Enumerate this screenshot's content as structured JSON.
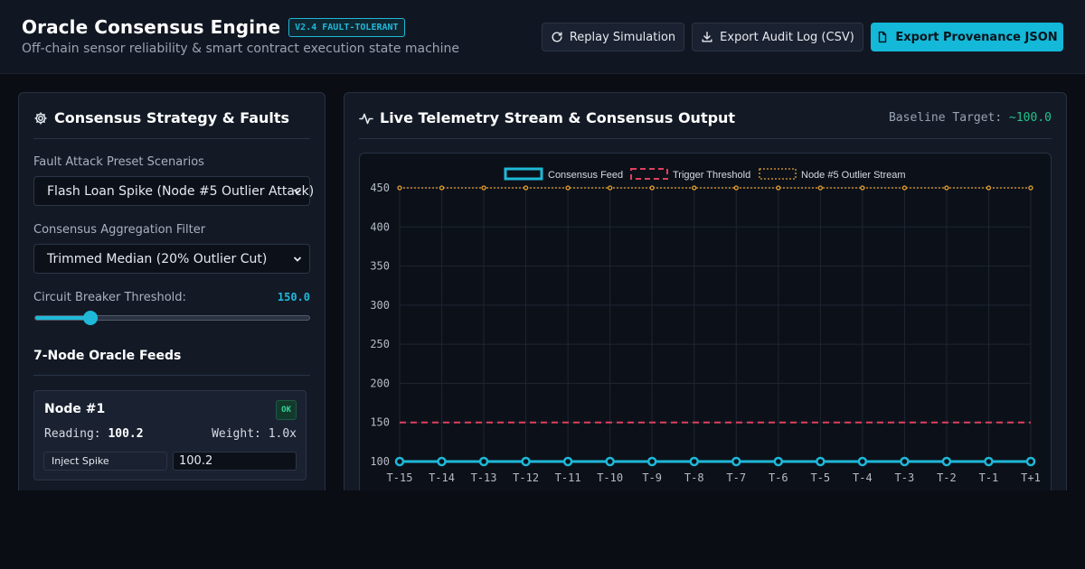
{
  "header": {
    "title": "Oracle Consensus Engine",
    "version_badge": "V2.4 FAULT-TOLERANT",
    "subtitle": "Off-chain sensor reliability & smart contract execution state machine",
    "buttons": {
      "replay": "Replay Simulation",
      "export_csv": "Export Audit Log (CSV)",
      "export_json": "Export Provenance JSON"
    },
    "icons": {
      "replay": "refresh-icon",
      "csv": "download-icon",
      "json": "file-icon"
    }
  },
  "left": {
    "title": "Consensus Strategy & Faults",
    "title_icon": "gear-icon",
    "scenario_label": "Fault Attack Preset Scenarios",
    "scenario_value": "Flash Loan Spike (Node #5 Outlier Attack)",
    "filter_label": "Consensus Aggregation Filter",
    "filter_value": "Trimmed Median (20% Outlier Cut)",
    "threshold_label": "Circuit Breaker Threshold:",
    "threshold_value": "150.0",
    "threshold_fraction": 0.2,
    "feeds_title": "7-Node Oracle Feeds",
    "nodes": [
      {
        "name": "Node #1",
        "status": "OK",
        "reading_label": "Reading:",
        "reading": "100.2",
        "weight_label": "Weight:",
        "weight": "1.0x",
        "spike_button": "Inject Spike",
        "input_value": "100.2"
      }
    ]
  },
  "right": {
    "title": "Live Telemetry Stream & Consensus Output",
    "title_icon": "activity-icon",
    "baseline_label": "Baseline Target:",
    "baseline_value": "~100.0"
  },
  "colors": {
    "accent": "#1fb8d8",
    "threshold": "#e0405e",
    "outlier": "#e8a030",
    "ok": "#34d399"
  },
  "chart_data": {
    "type": "line",
    "categories": [
      "T-15",
      "T-14",
      "T-13",
      "T-12",
      "T-11",
      "T-10",
      "T-9",
      "T-8",
      "T-7",
      "T-6",
      "T-5",
      "T-4",
      "T-3",
      "T-2",
      "T-1",
      "T+1"
    ],
    "series": [
      {
        "name": "Consensus Feed",
        "values": [
          100,
          100,
          100,
          100,
          100,
          100,
          100,
          100,
          100,
          100,
          100,
          100,
          100,
          100,
          100,
          100
        ]
      },
      {
        "name": "Trigger Threshold",
        "values": [
          150,
          150,
          150,
          150,
          150,
          150,
          150,
          150,
          150,
          150,
          150,
          150,
          150,
          150,
          150,
          150
        ]
      },
      {
        "name": "Node #5 Outlier Stream",
        "values": [
          450,
          450,
          450,
          450,
          450,
          450,
          450,
          450,
          450,
          450,
          450,
          450,
          450,
          450,
          450,
          450
        ]
      }
    ],
    "yticks": [
      100,
      150,
      200,
      250,
      300,
      350,
      400,
      450
    ],
    "ylim": [
      100,
      450
    ],
    "grid": true,
    "legend": "top-center"
  }
}
